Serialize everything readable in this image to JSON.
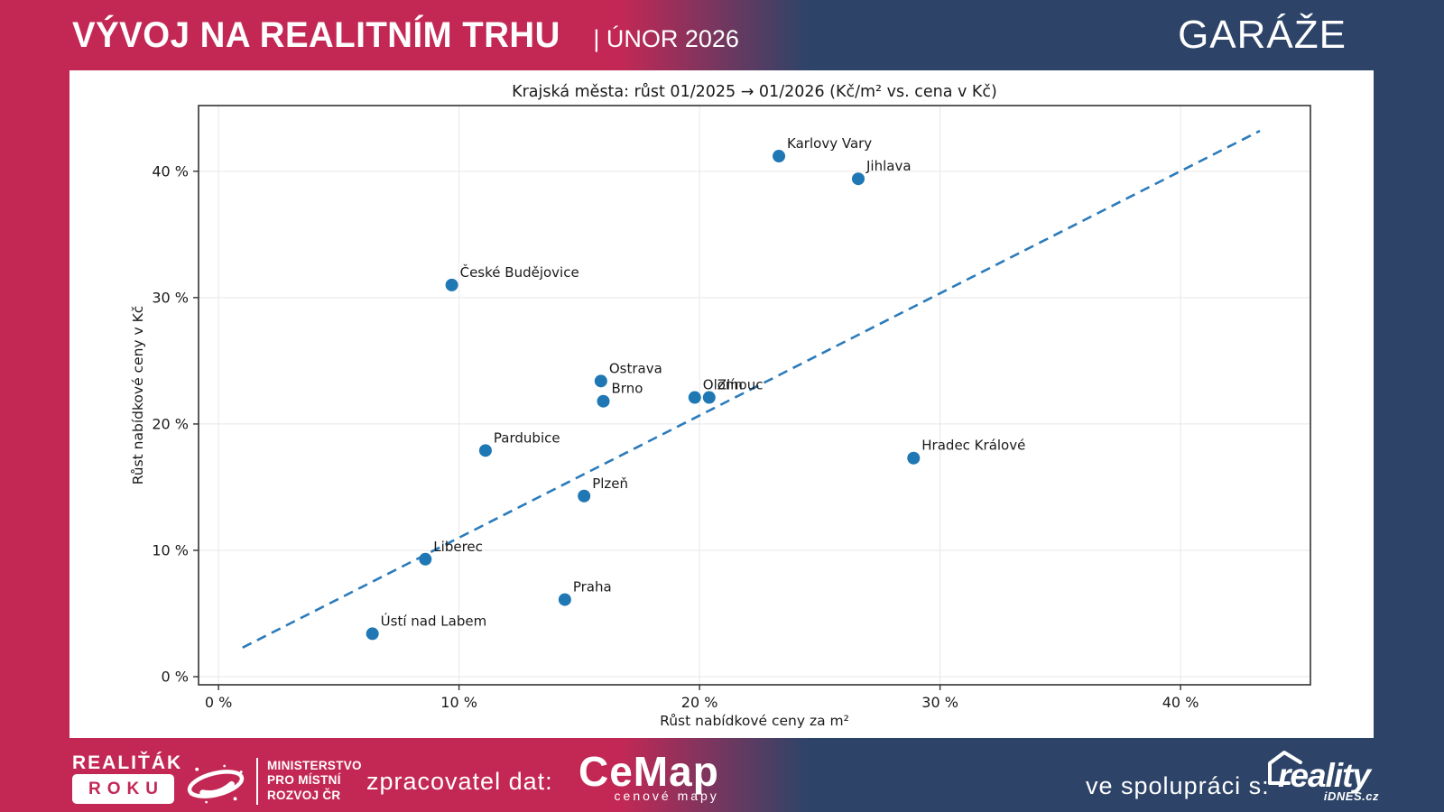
{
  "header": {
    "title": "VÝVOJ NA REALITNÍM TRHU",
    "subtitle": "| ÚNOR 2026",
    "category": "GARÁŽE"
  },
  "colors": {
    "crimson": "#c32855",
    "navy": "#2d4468",
    "point_blue": "#1f77b4",
    "trend_blue": "#2b7bbb",
    "grid": "#e7e7e7",
    "spine": "#333333",
    "chart_text": "#1a1a1a"
  },
  "chart_data": {
    "type": "scatter",
    "title": "Krajská města: růst 01/2025 → 01/2026 (Kč/m² vs. cena v Kč)",
    "xlabel": "Růst nabídkové ceny za m²",
    "ylabel": "Růst nabídkové ceny v Kč",
    "xlim": [
      -0.83,
      45.4
    ],
    "ylim": [
      -0.64,
      45.2
    ],
    "xticks": [
      0,
      10,
      20,
      30,
      40
    ],
    "yticks": [
      0,
      10,
      20,
      30,
      40
    ],
    "tick_suffix": " %",
    "grid": true,
    "legend": "none",
    "points": [
      {
        "label": "Karlovy Vary",
        "x": 23.3,
        "y": 41.2
      },
      {
        "label": "Jihlava",
        "x": 26.6,
        "y": 39.4
      },
      {
        "label": "České Budějovice",
        "x": 9.7,
        "y": 31.0
      },
      {
        "label": "Ostrava",
        "x": 15.9,
        "y": 23.4
      },
      {
        "label": "Brno",
        "x": 16.0,
        "y": 21.8
      },
      {
        "label": "Olomouc",
        "x": 19.8,
        "y": 22.1
      },
      {
        "label": "Zlín",
        "x": 20.4,
        "y": 22.1
      },
      {
        "label": "Pardubice",
        "x": 11.1,
        "y": 17.9
      },
      {
        "label": "Hradec Králové",
        "x": 28.9,
        "y": 17.3
      },
      {
        "label": "Plzeň",
        "x": 15.2,
        "y": 14.3
      },
      {
        "label": "Liberec",
        "x": 8.6,
        "y": 9.3
      },
      {
        "label": "Praha",
        "x": 14.4,
        "y": 6.1
      },
      {
        "label": "Ústí nad Labem",
        "x": 6.4,
        "y": 3.4
      }
    ],
    "trendline": {
      "x1": 1.0,
      "y1": 2.3,
      "x2": 43.3,
      "y2": 43.2,
      "style": "dashed"
    }
  },
  "footer": {
    "award": {
      "line1": "REALIŤÁK",
      "line2": "ROKU"
    },
    "ministry": [
      "MINISTERSTVO",
      "PRO MÍSTNÍ",
      "ROZVOJ ČR"
    ],
    "data_provider_label": "zpracovatel dat:",
    "cemap": {
      "name": "CeMap",
      "tagline": "cenové mapy"
    },
    "partner_label": "ve spolupráci s:",
    "reality": {
      "name": "reality",
      "sub": "iDNES.cz"
    }
  }
}
